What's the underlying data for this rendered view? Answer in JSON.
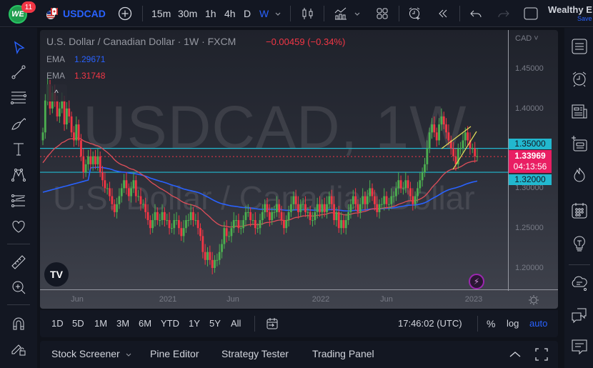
{
  "topbar": {
    "notification_count": "11",
    "symbol": "USDCAD",
    "timeframes": [
      "15m",
      "30m",
      "1h",
      "4h",
      "D",
      "W"
    ],
    "active_timeframe": "W",
    "user_name": "Wealthy E",
    "save_label": "Save"
  },
  "legend": {
    "title": "U.S. Dollar / Canadian Dollar · 1W · FXCM",
    "change": "−0.00459 (−0.34%)",
    "ema1_label": "EMA",
    "ema1_value": "1.29671",
    "ema1_color": "#2962ff",
    "ema2_label": "EMA",
    "ema2_value": "1.31748",
    "ema2_color": "#f23645"
  },
  "watermark": {
    "line1": "USDCAD, 1W",
    "line2": "U.S. Dollar / Canadian Dollar"
  },
  "price_scale": {
    "currency": "CAD ˅",
    "labels": [
      "1.45000",
      "1.40000",
      "1.35000",
      "1.30000",
      "1.25000",
      "1.20000"
    ],
    "resistance_label": "1.35000",
    "support_label": "1.32000",
    "last_price": "1.33969",
    "countdown": "04:13:56"
  },
  "time_scale": {
    "labels": [
      "Jun",
      "2021",
      "Jun",
      "2022",
      "Jun",
      "2023"
    ]
  },
  "range_bar": {
    "ranges": [
      "1D",
      "5D",
      "1M",
      "3M",
      "6M",
      "YTD",
      "1Y",
      "5Y",
      "All"
    ],
    "clock": "17:46:02 (UTC)",
    "percent": "%",
    "log": "log",
    "auto": "auto"
  },
  "bottom_panel": {
    "tabs": [
      "Stock Screener",
      "Pine Editor",
      "Strategy Tester",
      "Trading Panel"
    ]
  },
  "colors": {
    "up": "#4caf50",
    "down": "#f23645",
    "level_line": "#22b8cf",
    "accent": "#2962ff",
    "wedge": "#e6e05a"
  },
  "chart_data": {
    "type": "candlestick",
    "title": "U.S. Dollar / Canadian Dollar · 1W · FXCM",
    "ylim": [
      1.18,
      1.47
    ],
    "yticks": [
      1.45,
      1.4,
      1.35,
      1.3,
      1.25,
      1.2
    ],
    "xticks": [
      "Jun",
      "2021",
      "Jun",
      "2022",
      "Jun",
      "2023"
    ],
    "horizontal_levels": [
      1.35,
      1.32
    ],
    "last_price": 1.33969,
    "ema_fast_last": 1.31748,
    "ema_slow_last": 1.29671,
    "closes": [
      1.37,
      1.41,
      1.43,
      1.4,
      1.42,
      1.41,
      1.39,
      1.4,
      1.41,
      1.38,
      1.4,
      1.39,
      1.37,
      1.36,
      1.38,
      1.36,
      1.34,
      1.32,
      1.33,
      1.34,
      1.33,
      1.34,
      1.33,
      1.34,
      1.32,
      1.31,
      1.3,
      1.3,
      1.29,
      1.28,
      1.27,
      1.28,
      1.29,
      1.3,
      1.31,
      1.3,
      1.29,
      1.3,
      1.31,
      1.29,
      1.29,
      1.28,
      1.28,
      1.27,
      1.26,
      1.25,
      1.26,
      1.27,
      1.26,
      1.26,
      1.27,
      1.26,
      1.26,
      1.25,
      1.25,
      1.26,
      1.26,
      1.25,
      1.24,
      1.25,
      1.26,
      1.26,
      1.27,
      1.26,
      1.26,
      1.25,
      1.24,
      1.22,
      1.21,
      1.22,
      1.21,
      1.2,
      1.21,
      1.21,
      1.22,
      1.23,
      1.25,
      1.24,
      1.24,
      1.25,
      1.26,
      1.26,
      1.25,
      1.25,
      1.26,
      1.27,
      1.27,
      1.26,
      1.26,
      1.25,
      1.25,
      1.26,
      1.27,
      1.28,
      1.27,
      1.26,
      1.27,
      1.27,
      1.28,
      1.27,
      1.26,
      1.25,
      1.26,
      1.27,
      1.28,
      1.29,
      1.28,
      1.27,
      1.28,
      1.28,
      1.27,
      1.27,
      1.26,
      1.26,
      1.27,
      1.28,
      1.27,
      1.28,
      1.27,
      1.28,
      1.29,
      1.28,
      1.26,
      1.27,
      1.25,
      1.26,
      1.25,
      1.26,
      1.27,
      1.28,
      1.29,
      1.28,
      1.27,
      1.28,
      1.29,
      1.28,
      1.29,
      1.3,
      1.29,
      1.28,
      1.27,
      1.28,
      1.28,
      1.29,
      1.28,
      1.28,
      1.29,
      1.29,
      1.3,
      1.31,
      1.3,
      1.3,
      1.31,
      1.3,
      1.29,
      1.28,
      1.29,
      1.3,
      1.31,
      1.32,
      1.33,
      1.35,
      1.37,
      1.38,
      1.37,
      1.36,
      1.38,
      1.39,
      1.38,
      1.37,
      1.36,
      1.35,
      1.34,
      1.33,
      1.35,
      1.35,
      1.36,
      1.37,
      1.36,
      1.35,
      1.35,
      1.34,
      1.34
    ]
  }
}
